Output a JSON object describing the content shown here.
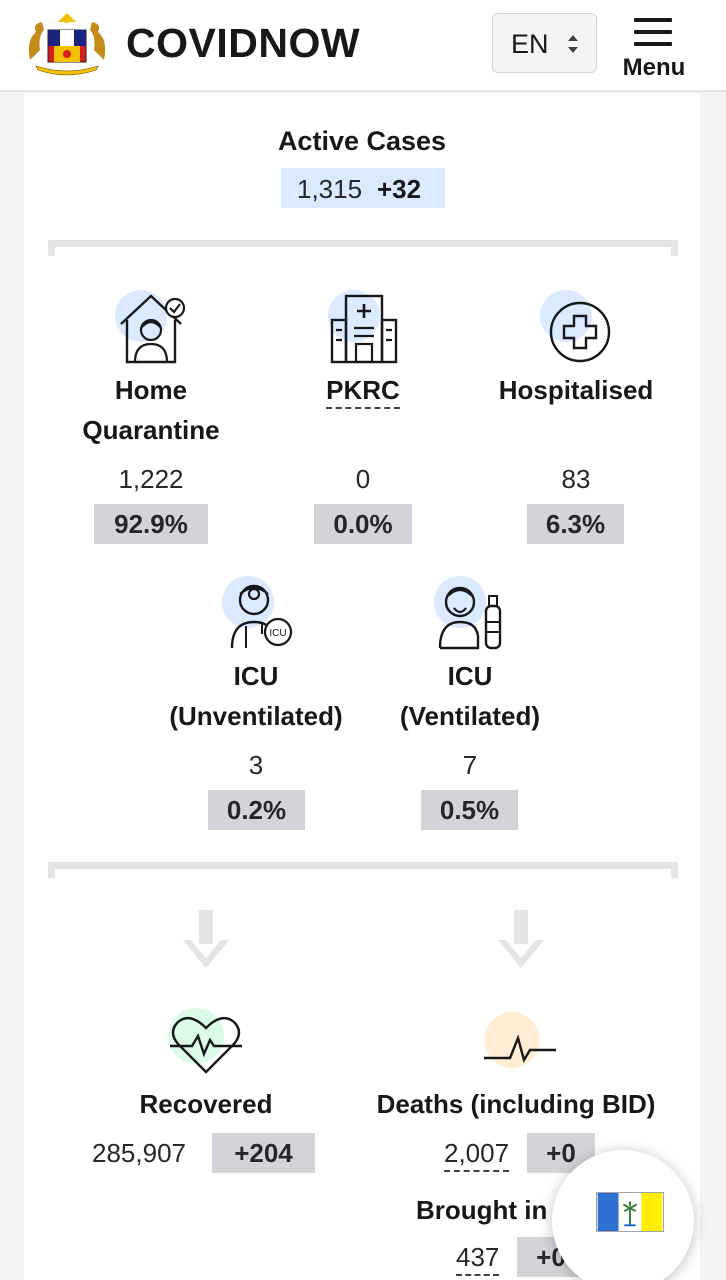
{
  "header": {
    "logo_icon": "malaysia-coat-of-arms-icon",
    "brand": "COVIDNOW",
    "language": "EN",
    "menu_label": "Menu"
  },
  "active_cases": {
    "title": "Active Cases",
    "value": "1,315",
    "delta": "+32"
  },
  "care": {
    "home_quarantine": {
      "label_line1": "Home",
      "label_line2": "Quarantine",
      "count": "1,222",
      "percent": "92.9%",
      "icon": "home-quarantine-icon"
    },
    "pkrc": {
      "label": "PKRC",
      "count": "0",
      "percent": "0.0%",
      "icon": "hospital-building-icon"
    },
    "hospitalised": {
      "label": "Hospitalised",
      "count": "83",
      "percent": "6.3%",
      "icon": "medical-cross-icon"
    },
    "icu_unventilated": {
      "label_line1": "ICU",
      "label_line2": "(Unventilated)",
      "count": "3",
      "percent": "0.2%",
      "icon": "icu-doctor-icon"
    },
    "icu_ventilated": {
      "label_line1": "ICU",
      "label_line2": "(Ventilated)",
      "count": "7",
      "percent": "0.5%",
      "icon": "ventilator-patient-icon"
    }
  },
  "outcomes": {
    "recovered": {
      "label": "Recovered",
      "value": "285,907",
      "delta": "+204",
      "icon": "heart-pulse-icon"
    },
    "deaths": {
      "label": "Deaths (including BID)",
      "value": "2,007",
      "delta": "+0",
      "icon": "flatline-pulse-icon"
    },
    "bid": {
      "label": "Brought in D",
      "value": "437",
      "delta": "+0"
    }
  },
  "state_flag": {
    "icon": "penang-flag-icon",
    "colors": [
      "#2f6fd1",
      "#ffffff",
      "#ffee00"
    ]
  },
  "colors": {
    "active_bg": "#dbeafe",
    "pct_bg": "#d4d4d8",
    "icon_halo_blue": "#dbeafe",
    "icon_halo_green": "#dcfce7",
    "icon_halo_orange": "#ffedd5"
  }
}
